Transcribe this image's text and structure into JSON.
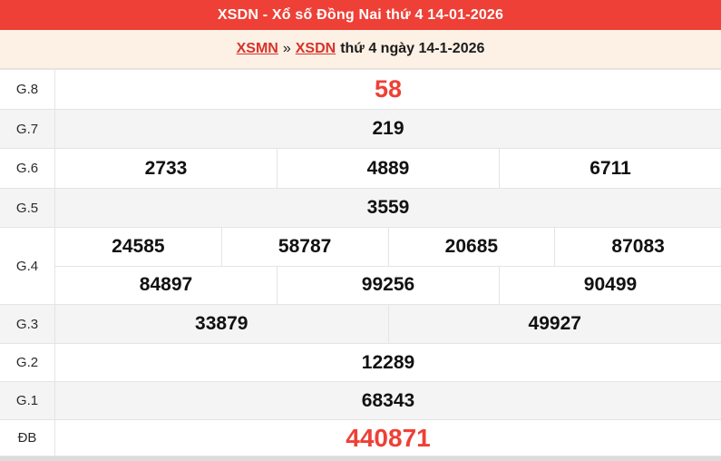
{
  "header": {
    "title": "XSDN - Xổ số Đồng Nai thứ 4 14-01-2026"
  },
  "breadcrumb": {
    "region_link": "XSMN",
    "separator": "»",
    "province_link": "XSDN",
    "suffix": "thứ 4 ngày 14-1-2026"
  },
  "results": {
    "rows": [
      {
        "label": "G.8",
        "numbers": [
          "58"
        ]
      },
      {
        "label": "G.7",
        "numbers": [
          "219"
        ]
      },
      {
        "label": "G.6",
        "numbers": [
          "2733",
          "4889",
          "6711"
        ]
      },
      {
        "label": "G.5",
        "numbers": [
          "3559"
        ]
      },
      {
        "label": "G.4",
        "lines": [
          [
            "24585",
            "58787",
            "20685",
            "87083"
          ],
          [
            "84897",
            "99256",
            "90499"
          ]
        ]
      },
      {
        "label": "G.3",
        "numbers": [
          "33879",
          "49927"
        ]
      },
      {
        "label": "G.2",
        "numbers": [
          "12289"
        ]
      },
      {
        "label": "G.1",
        "numbers": [
          "68343"
        ]
      },
      {
        "label": "ĐB",
        "numbers": [
          "440871"
        ]
      }
    ]
  },
  "colors": {
    "accent_red": "#ee4036",
    "link_red": "#d6332b",
    "breadcrumb_bg": "#fdf0e4",
    "row_alt_bg": "#f4f4f4",
    "border": "#e4e4e4",
    "number_text": "#111111"
  }
}
